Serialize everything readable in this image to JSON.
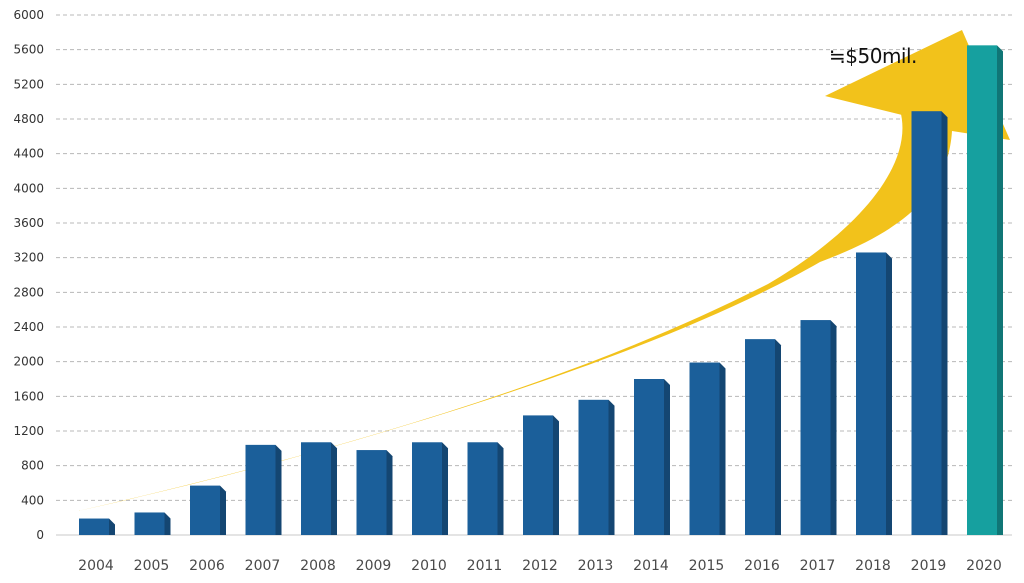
{
  "chart_data": {
    "type": "bar",
    "title": "",
    "xlabel": "",
    "ylabel": "",
    "categories": [
      "2004",
      "2005",
      "2006",
      "2007",
      "2008",
      "2009",
      "2010",
      "2011",
      "2012",
      "2013",
      "2014",
      "2015",
      "2016",
      "2017",
      "2018",
      "2019",
      "2020"
    ],
    "values": [
      190,
      260,
      570,
      1040,
      1070,
      980,
      1070,
      1070,
      1380,
      1560,
      1800,
      1990,
      2260,
      2480,
      3260,
      4890,
      5650
    ],
    "ylim": [
      0,
      6000
    ],
    "yticks": [
      0,
      400,
      800,
      1200,
      1600,
      2000,
      2400,
      2800,
      3200,
      3600,
      4000,
      4400,
      4800,
      5200,
      5600,
      6000
    ],
    "grid": true,
    "bar_colors": {
      "default": "#1b5f9a",
      "highlight": "#16a09f"
    },
    "highlight_category": "2020",
    "trend_arrow_color": "#f2c21b",
    "annotation": "≒$50mil."
  }
}
